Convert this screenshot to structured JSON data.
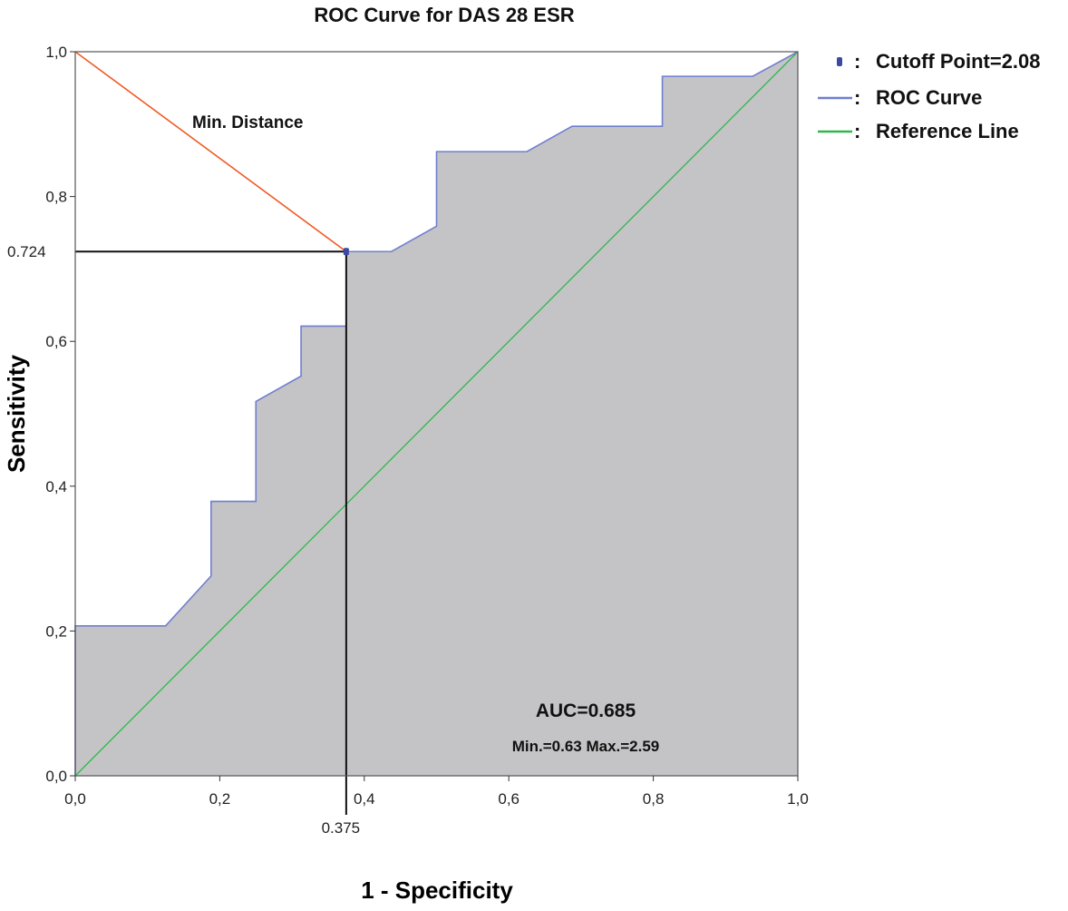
{
  "chart_data": {
    "type": "line",
    "title": "ROC Curve for DAS 28 ESR",
    "xlabel": "1 - Specificity",
    "ylabel": "Sensitivity",
    "xlim": [
      0,
      1
    ],
    "ylim": [
      0,
      1
    ],
    "x_ticks": [
      "0,0",
      "0,2",
      "0,4",
      "0,6",
      "0,8",
      "1,0"
    ],
    "y_ticks": [
      "0,0",
      "0,2",
      "0,4",
      "0,6",
      "0,8",
      "1,0"
    ],
    "grid": false,
    "legend_position": "top-right",
    "series": [
      {
        "name": "ROC Curve",
        "color": "#6f7fcf",
        "x": [
          0,
          0,
          0.125,
          0.188,
          0.188,
          0.25,
          0.25,
          0.3125,
          0.3125,
          0.375,
          0.375,
          0.4375,
          0.5,
          0.5,
          0.625,
          0.6875,
          0.8125,
          0.8125,
          0.9375,
          1.0
        ],
        "y": [
          0,
          0.207,
          0.207,
          0.276,
          0.379,
          0.379,
          0.517,
          0.552,
          0.621,
          0.621,
          0.724,
          0.724,
          0.759,
          0.862,
          0.862,
          0.897,
          0.897,
          0.966,
          0.966,
          1.0
        ]
      },
      {
        "name": "Reference Line",
        "color": "#2fb84a",
        "x": [
          0,
          1
        ],
        "y": [
          0,
          1
        ]
      }
    ],
    "area_fill_color": "#c4c4c6",
    "cutoff": {
      "x": 0.375,
      "y": 0.724,
      "x_label": "0.375",
      "y_label": "0.724",
      "color": "#3a4aa0"
    },
    "min_distance": {
      "label": "Min. Distance",
      "from": [
        0,
        1
      ],
      "to": [
        0.375,
        0.724
      ],
      "color": "#f05a24"
    },
    "legend": [
      {
        "marker": "point",
        "text": "Cutoff Point=2.08",
        "color": "#3a4aa0"
      },
      {
        "marker": "line",
        "text": "ROC Curve",
        "color": "#6f7fcf"
      },
      {
        "marker": "line",
        "text": "Reference Line",
        "color": "#2fb84a"
      }
    ],
    "legend_separator": ":",
    "annotations": {
      "auc": "AUC=0.685",
      "minmax": "Min.=0.63 Max.=2.59"
    }
  }
}
